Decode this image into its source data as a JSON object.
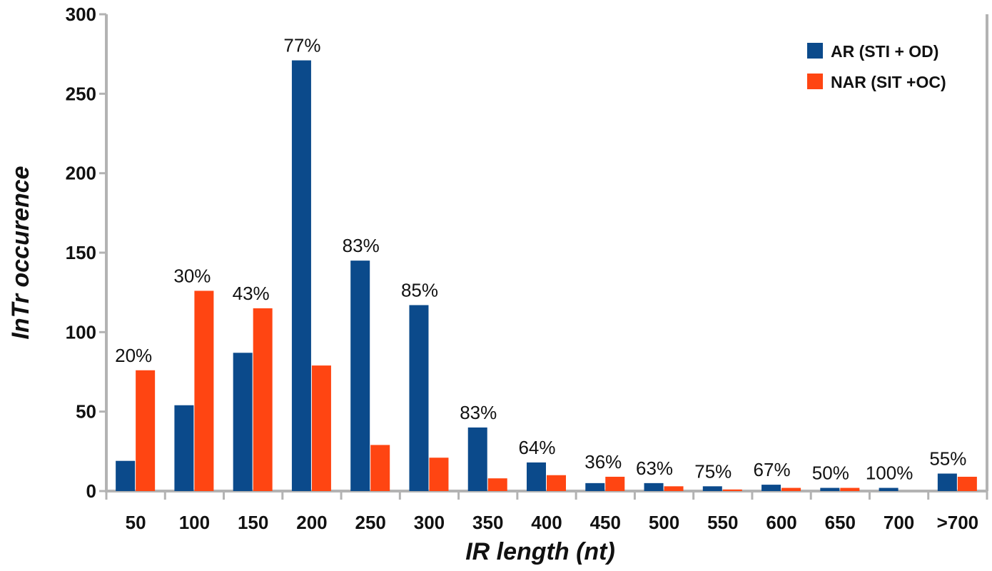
{
  "chart_data": {
    "type": "bar",
    "xlabel": "IR length (nt)",
    "ylabel": "InTr occurence",
    "ylim": [
      0,
      300
    ],
    "yticks": [
      0,
      50,
      100,
      150,
      200,
      250,
      300
    ],
    "categories": [
      "50",
      "100",
      "150",
      "200",
      "250",
      "300",
      "350",
      "400",
      "450",
      "500",
      "550",
      "600",
      "650",
      "700",
      ">700"
    ],
    "series": [
      {
        "name": "AR (STI + OD)",
        "color": "#0b4a8b",
        "values": [
          19,
          54,
          87,
          271,
          145,
          117,
          40,
          18,
          5,
          5,
          3,
          4,
          2,
          2,
          11
        ]
      },
      {
        "name": "NAR (SIT +OC)",
        "color": "#ff4512",
        "values": [
          76,
          126,
          115,
          79,
          29,
          21,
          8,
          10,
          9,
          3,
          1,
          2,
          2,
          0,
          9
        ]
      }
    ],
    "data_labels": [
      "20%",
      "30%",
      "43%",
      "77%",
      "83%",
      "85%",
      "83%",
      "64%",
      "36%",
      "63%",
      "75%",
      "67%",
      "50%",
      "100%",
      "55%"
    ],
    "legend_position": "top-right",
    "grid": false
  },
  "colors": {
    "axis": "#b3b3b3"
  }
}
